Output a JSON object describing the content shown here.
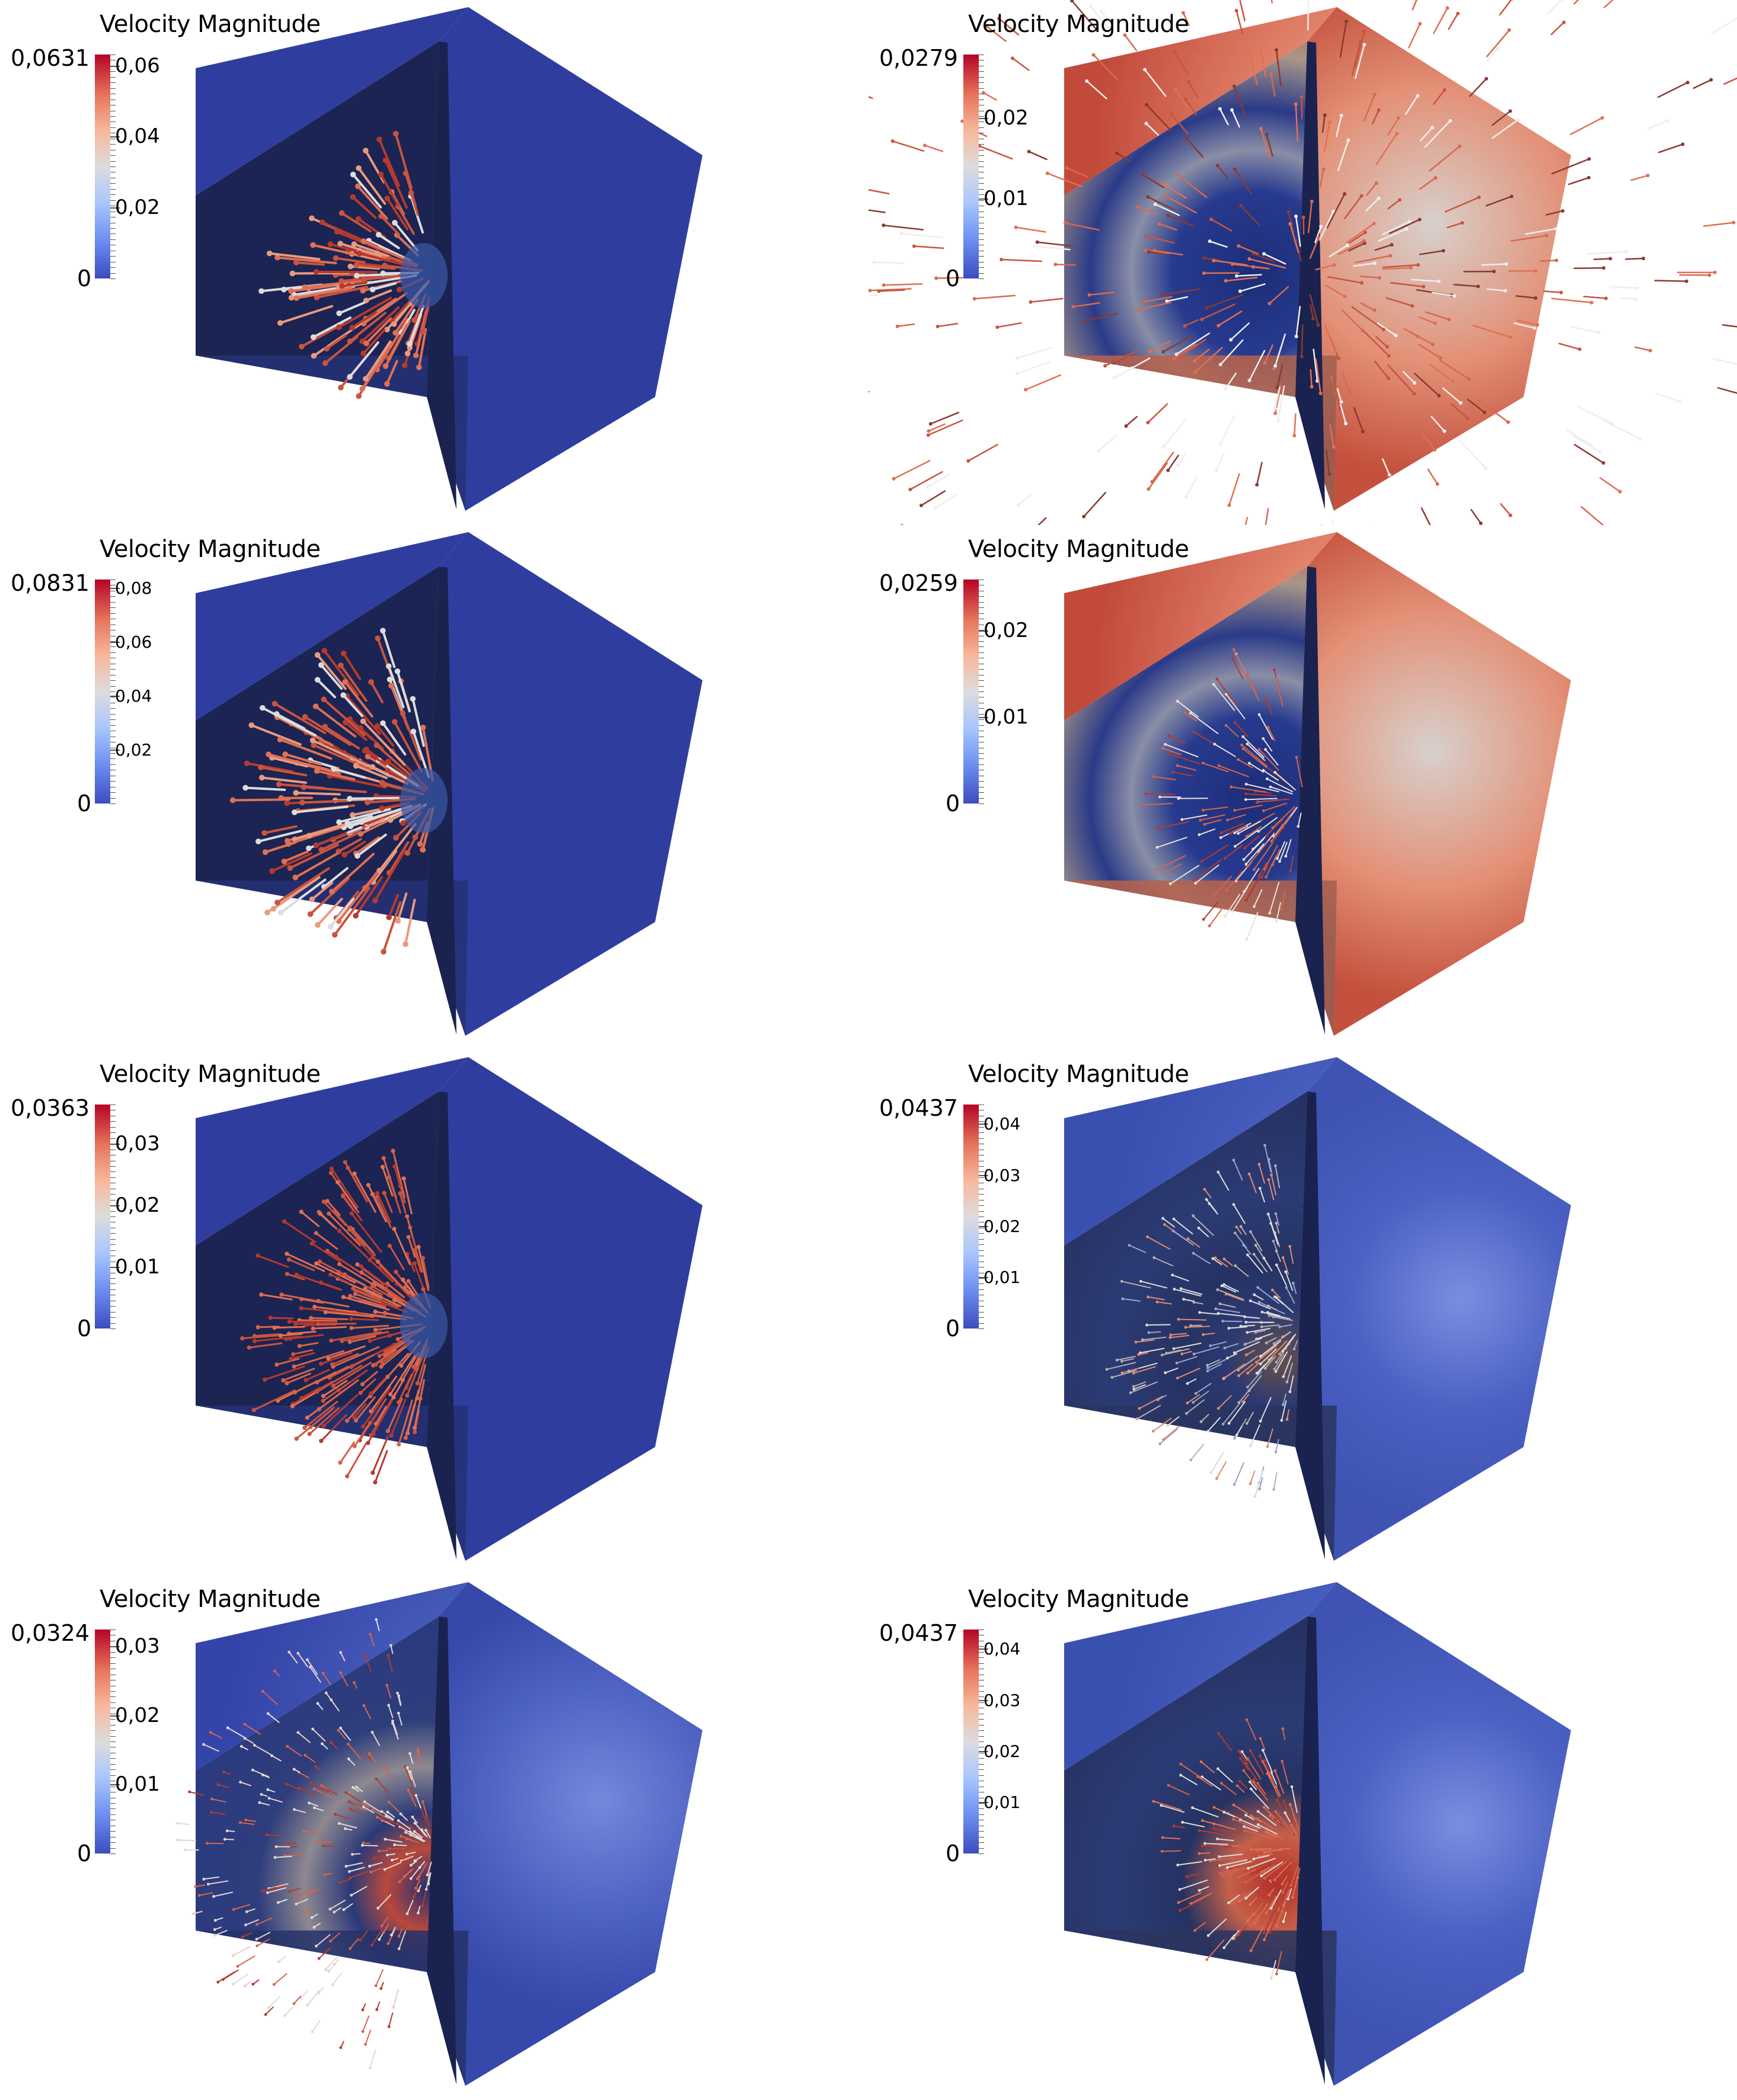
{
  "panels": [
    {
      "title": "Velocity Magnitude",
      "max": "0,0631",
      "min": "0",
      "ticks": [
        "0,06",
        "0,04",
        "0,02"
      ],
      "tick_fracs": [
        0.951,
        0.634,
        0.317
      ],
      "variant": "core",
      "small": false
    },
    {
      "title": "Velocity Magnitude",
      "max": "0,0279",
      "min": "0",
      "ticks": [
        "0,02",
        "0,01"
      ],
      "tick_fracs": [
        0.717,
        0.358
      ],
      "variant": "hot",
      "small": false
    },
    {
      "title": "Velocity Magnitude",
      "max": "0,0831",
      "min": "0",
      "ticks": [
        "0,08",
        "0,06",
        "0,04",
        "0,02"
      ],
      "tick_fracs": [
        0.963,
        0.722,
        0.481,
        0.241
      ],
      "variant": "core",
      "small": true
    },
    {
      "title": "Velocity Magnitude",
      "max": "0,0259",
      "min": "0",
      "ticks": [
        "0,02",
        "0,01"
      ],
      "tick_fracs": [
        0.772,
        0.386
      ],
      "variant": "hot2",
      "small": false
    },
    {
      "title": "Velocity Magnitude",
      "max": "0,0363",
      "min": "0",
      "ticks": [
        "0,03",
        "0,02",
        "0,01"
      ],
      "tick_fracs": [
        0.826,
        0.551,
        0.275
      ],
      "variant": "core-wide",
      "small": false
    },
    {
      "title": "Velocity Magnitude",
      "max": "0,0437",
      "min": "0",
      "ticks": [
        "0,04",
        "0,03",
        "0,02",
        "0,01"
      ],
      "tick_fracs": [
        0.915,
        0.686,
        0.458,
        0.229
      ],
      "variant": "cool",
      "small": true
    },
    {
      "title": "Velocity Magnitude",
      "max": "0,0324",
      "min": "0",
      "ticks": [
        "0,03",
        "0,02",
        "0,01"
      ],
      "tick_fracs": [
        0.926,
        0.617,
        0.309
      ],
      "variant": "ring",
      "small": false
    },
    {
      "title": "Velocity Magnitude",
      "max": "0,0437",
      "min": "0",
      "ticks": [
        "0,04",
        "0,03",
        "0,02",
        "0,01"
      ],
      "tick_fracs": [
        0.915,
        0.686,
        0.458,
        0.229
      ],
      "variant": "cool2",
      "small": true
    }
  ],
  "colors": {
    "face_blue": "#2f3e9e",
    "face_dark": "#1b2452",
    "face_mid": "#243175",
    "hot": "#c9543f",
    "cool": "#4e63c8"
  }
}
